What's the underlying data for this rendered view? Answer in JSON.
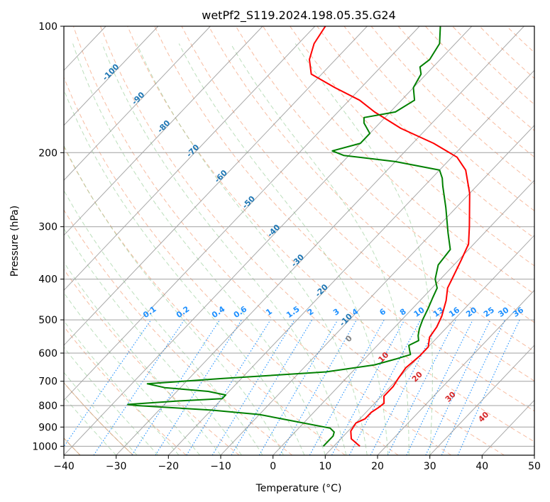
{
  "chart_data": {
    "type": "skew-t",
    "title": "wetPf2_S119.2024.198.05.35.G24",
    "xlabel": "Temperature (°C)",
    "ylabel": "Pressure (hPa)",
    "xlim": [
      -40,
      50
    ],
    "ylim": [
      1050,
      100
    ],
    "y_scale": "log",
    "grid": true,
    "x_ticks": [
      -40,
      -30,
      -20,
      -10,
      0,
      10,
      20,
      30,
      40,
      50
    ],
    "x_tick_labels": [
      "−40",
      "−30",
      "−20",
      "−10",
      "0",
      "10",
      "20",
      "30",
      "40",
      "50"
    ],
    "y_ticks": [
      100,
      200,
      300,
      400,
      500,
      600,
      700,
      800,
      900,
      1000
    ],
    "y_tick_labels": [
      "100",
      "200",
      "300",
      "400",
      "500",
      "600",
      "700",
      "800",
      "900",
      "1000"
    ],
    "series": [
      {
        "kind": "temperature",
        "color": "#ff0000",
        "points": [
          [
            15.0,
            1000
          ],
          [
            12.0,
            960
          ],
          [
            10.5,
            920
          ],
          [
            10.0,
            880
          ],
          [
            11.0,
            860
          ],
          [
            11.0,
            830
          ],
          [
            11.5,
            810
          ],
          [
            11.8,
            790
          ],
          [
            10.5,
            760
          ],
          [
            10.5,
            720
          ],
          [
            10.0,
            690
          ],
          [
            9.5,
            650
          ],
          [
            10.0,
            610
          ],
          [
            10.0,
            580
          ],
          [
            8.5,
            550
          ],
          [
            8.0,
            520
          ],
          [
            7.0,
            490
          ],
          [
            5.0,
            450
          ],
          [
            3.0,
            420
          ],
          [
            2.0,
            395
          ],
          [
            0.5,
            360
          ],
          [
            -1.0,
            330
          ],
          [
            -4.0,
            300
          ],
          [
            -10.0,
            250
          ],
          [
            -15.0,
            220
          ],
          [
            -19.0,
            205
          ],
          [
            -26.0,
            190
          ],
          [
            -35.0,
            175
          ],
          [
            -43.0,
            160
          ],
          [
            -48.0,
            150
          ],
          [
            -55.0,
            140
          ],
          [
            -62.0,
            130
          ],
          [
            -65.0,
            120
          ],
          [
            -67.0,
            110
          ],
          [
            -68.0,
            100
          ]
        ]
      },
      {
        "kind": "dewpoint",
        "color": "#008000",
        "points": [
          [
            8.0,
            1000
          ],
          [
            8.0,
            970
          ],
          [
            8.0,
            945
          ],
          [
            7.5,
            925
          ],
          [
            6.0,
            905
          ],
          [
            -5.0,
            860
          ],
          [
            -10.0,
            840
          ],
          [
            -20.0,
            820
          ],
          [
            -35.0,
            800
          ],
          [
            -37.0,
            795
          ],
          [
            -28.0,
            780
          ],
          [
            -20.0,
            770
          ],
          [
            -20.0,
            755
          ],
          [
            -24.0,
            740
          ],
          [
            -33.0,
            725
          ],
          [
            -37.0,
            710
          ],
          [
            -24.0,
            690
          ],
          [
            -5.0,
            665
          ],
          [
            3.0,
            640
          ],
          [
            6.0,
            620
          ],
          [
            8.0,
            605
          ],
          [
            7.0,
            590
          ],
          [
            6.0,
            575
          ],
          [
            7.0,
            560
          ],
          [
            6.0,
            545
          ],
          [
            5.0,
            525
          ],
          [
            4.0,
            500
          ],
          [
            3.0,
            470
          ],
          [
            2.0,
            445
          ],
          [
            1.0,
            420
          ],
          [
            -1.0,
            400
          ],
          [
            -3.0,
            370
          ],
          [
            -3.5,
            340
          ],
          [
            -7.0,
            310
          ],
          [
            -12.0,
            270
          ],
          [
            -16.5,
            240
          ],
          [
            -18.0,
            230
          ],
          [
            -20.0,
            220
          ],
          [
            -30.0,
            210
          ],
          [
            -41.0,
            203
          ],
          [
            -44.0,
            198
          ],
          [
            -40.0,
            190
          ],
          [
            -40.0,
            180
          ],
          [
            -43.0,
            170
          ],
          [
            -44.0,
            165
          ],
          [
            -39.0,
            160
          ],
          [
            -37.5,
            150
          ],
          [
            -40.0,
            140
          ],
          [
            -41.0,
            130
          ],
          [
            -42.5,
            125
          ],
          [
            -42.0,
            120
          ],
          [
            -43.0,
            110
          ],
          [
            -46.0,
            100
          ]
        ]
      }
    ],
    "isotherm_labels": [
      "-100",
      "-90",
      "-80",
      "-70",
      "-60",
      "-50",
      "-40",
      "-30",
      "-20",
      "-10"
    ],
    "isotherm_label_color": "#1f77b4",
    "mixing_ratio_labels": [
      "0.1",
      "0.2",
      "0.4",
      "0.6",
      "1",
      "1.5",
      "2",
      "3",
      "4",
      "6",
      "8",
      "10",
      "13",
      "16",
      "20",
      "25",
      "30",
      "36"
    ],
    "mixing_ratio_color": "#1e90ff",
    "dry_adiabat_labels": [
      "0",
      "10",
      "20",
      "30",
      "40"
    ],
    "dry_adiabat_label_colors": [
      "#808080",
      "#d62728",
      "#d62728",
      "#d62728",
      "#d62728"
    ]
  }
}
